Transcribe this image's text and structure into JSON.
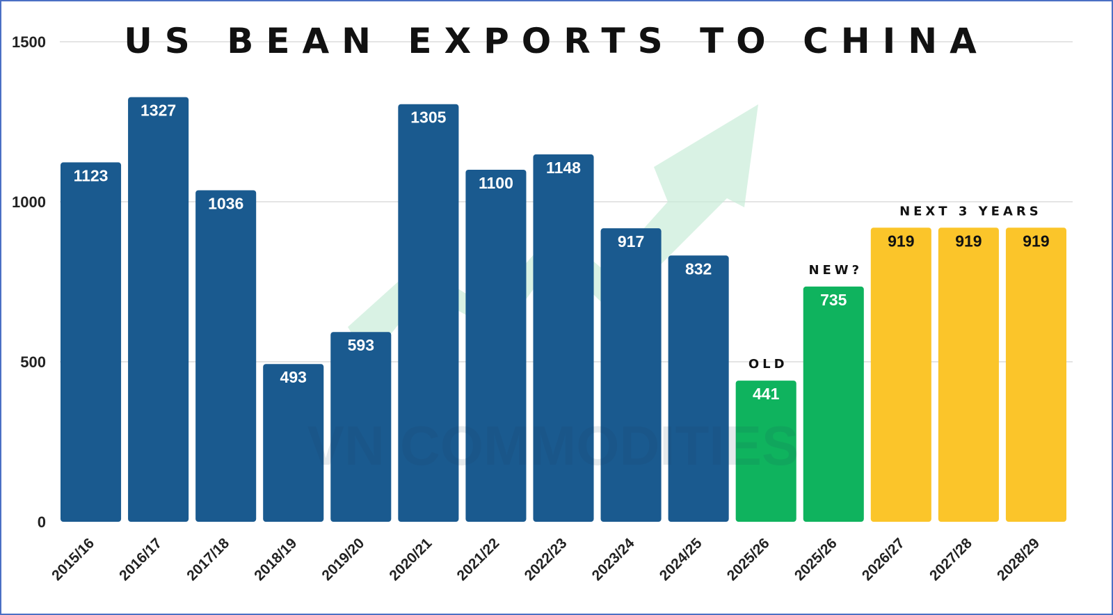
{
  "chart_data": {
    "type": "bar",
    "title": "US BEAN EXPORTS TO CHINA",
    "xlabel": "",
    "ylabel": "",
    "ylim": [
      0,
      1500
    ],
    "yticks": [
      0,
      500,
      1000,
      1500
    ],
    "grid": true,
    "categories": [
      "2015/16",
      "2016/17",
      "2017/18",
      "2018/19",
      "2019/20",
      "2020/21",
      "2021/22",
      "2022/23",
      "2023/24",
      "2024/25",
      "2025/26",
      "2025/26",
      "2026/27",
      "2027/28",
      "2028/29"
    ],
    "values": [
      1123,
      1327,
      1036,
      493,
      593,
      1305,
      1100,
      1148,
      917,
      832,
      441,
      735,
      919,
      919,
      919
    ],
    "bar_colors": [
      "#1a5a8f",
      "#1a5a8f",
      "#1a5a8f",
      "#1a5a8f",
      "#1a5a8f",
      "#1a5a8f",
      "#1a5a8f",
      "#1a5a8f",
      "#1a5a8f",
      "#1a5a8f",
      "#0fb35e",
      "#0fb35e",
      "#fbc52a",
      "#fbc52a",
      "#fbc52a"
    ],
    "label_colors": [
      "#ffffff",
      "#ffffff",
      "#ffffff",
      "#ffffff",
      "#ffffff",
      "#ffffff",
      "#ffffff",
      "#ffffff",
      "#ffffff",
      "#ffffff",
      "#ffffff",
      "#ffffff",
      "#111111",
      "#111111",
      "#111111"
    ],
    "annotations": [
      {
        "text": "OLD",
        "bar_index": 10
      },
      {
        "text": "NEW?",
        "bar_index": 11
      },
      {
        "text": "NEXT 3 YEARS",
        "bar_span": [
          12,
          14
        ]
      }
    ]
  },
  "watermark": "VN COMMODITIES",
  "colors": {
    "historical": "#1a5a8f",
    "current": "#0fb35e",
    "projection": "#fbc52a",
    "arrow": "#c9ecd8",
    "frame": "#4a6fc4"
  }
}
